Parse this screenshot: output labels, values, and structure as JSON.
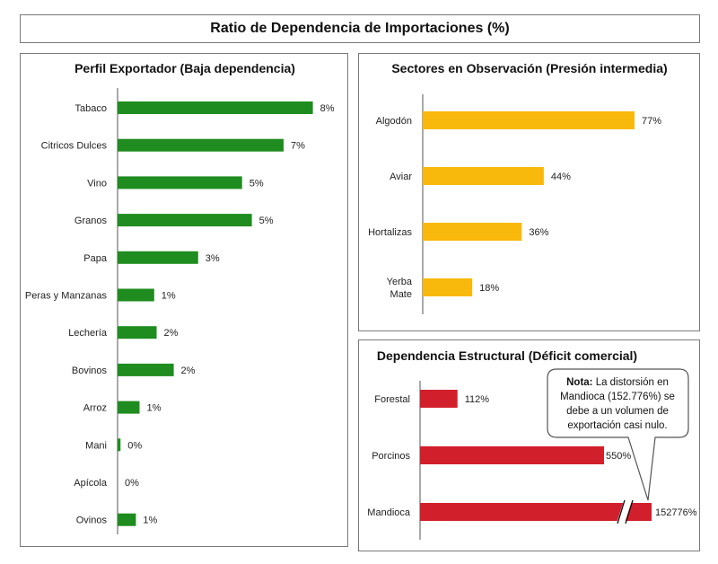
{
  "main_title": "Ratio de Dependencia de Importaciones (%)",
  "colors": {
    "green": "#1e8c1e",
    "orange": "#f9b90c",
    "red": "#d21f2c"
  },
  "note": {
    "bold": "Nota:",
    "lines": [
      "La distorsión en",
      "Mandioca (152.776%) se",
      "debe a un volumen de",
      "exportación casi nulo."
    ]
  },
  "chart_data": [
    {
      "type": "bar",
      "orientation": "horizontal",
      "title": "Perfil Exportador (Baja dependencia)",
      "categories": [
        "Tabaco",
        "Citricos Dulces",
        "Vino",
        "Granos",
        "Papa",
        "Peras y Manzanas",
        "Lechería",
        "Bovinos",
        "Arroz",
        "Mani",
        "Apícola",
        "Ovinos"
      ],
      "values": [
        8,
        7,
        5,
        5,
        3,
        1,
        2,
        2,
        1,
        0,
        0,
        1
      ],
      "bar_lengths": [
        8.0,
        6.8,
        5.1,
        5.5,
        3.3,
        1.5,
        1.6,
        2.3,
        0.9,
        0.12,
        0,
        0.75
      ],
      "labels": [
        "8%",
        "7%",
        "5%",
        "5%",
        "3%",
        "1%",
        "2%",
        "2%",
        "1%",
        "0%",
        "0%",
        "1%"
      ],
      "color": "#1e8c1e"
    },
    {
      "type": "bar",
      "orientation": "horizontal",
      "title": "Sectores en Observación (Presión intermedia)",
      "categories": [
        "Algodón",
        "Aviar",
        "Hortalizas",
        "Yerba Mate"
      ],
      "category_lines": [
        [
          "Algodón"
        ],
        [
          "Aviar"
        ],
        [
          "Hortalizas"
        ],
        [
          "Yerba",
          "Mate"
        ]
      ],
      "values": [
        77,
        44,
        36,
        18
      ],
      "labels": [
        "77%",
        "44%",
        "36%",
        "18%"
      ],
      "color": "#f9b90c"
    },
    {
      "type": "bar",
      "orientation": "horizontal",
      "title": "Dependencia Estructural (Déficit comercial)",
      "categories": [
        "Forestal",
        "Porcinos",
        "Mandioca"
      ],
      "values": [
        112,
        550,
        152776
      ],
      "labels": [
        "112%",
        "550%",
        "152776%"
      ],
      "axis_break": true,
      "color": "#d21f2c"
    }
  ]
}
